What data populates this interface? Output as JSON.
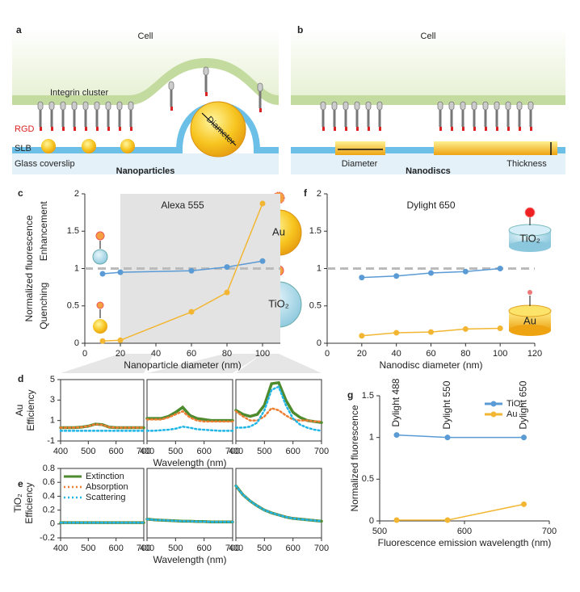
{
  "diagrams": {
    "a": {
      "label": "a",
      "cell": "Cell",
      "integrin": "Integrin cluster",
      "rgd": "RGD",
      "slb": "SLB",
      "glass": "Glass coverslip",
      "title": "Nanoparticles",
      "diameter": "Diameter"
    },
    "b": {
      "label": "b",
      "cell": "Cell",
      "diameter": "Diameter",
      "title": "Nanodiscs",
      "thickness": "Thickness"
    }
  },
  "chart_data": [
    {
      "panel": "c",
      "type": "line",
      "title": "Alexa 555",
      "xlabel": "Nanoparticle diameter (nm)",
      "ylabel": [
        "Normalized fluorescence"
      ],
      "y_annotations": [
        "Enhancement",
        "Quenching"
      ],
      "icons": [
        "Au",
        "TiO₂"
      ],
      "x": [
        10,
        20,
        60,
        80,
        100
      ],
      "xlim": [
        0,
        110
      ],
      "xticks": [
        0,
        20,
        40,
        60,
        80,
        100
      ],
      "ylim": [
        0,
        2
      ],
      "yticks": [
        0,
        0.5,
        1,
        1.5,
        2
      ],
      "shade_x": [
        20,
        110
      ],
      "refline": 1,
      "markers": true,
      "frame": false,
      "series": [
        {
          "color": "#5b9bd5",
          "values": [
            0.93,
            0.95,
            0.97,
            1.02,
            1.1
          ]
        },
        {
          "color": "#f2b632",
          "values": [
            0.03,
            0.04,
            0.42,
            0.68,
            1.87
          ]
        }
      ]
    },
    {
      "panel": "f",
      "type": "line",
      "title": "Dylight 650",
      "xlabel": "Nanodisc diameter (nm)",
      "icons": [
        "TiO₂",
        "Au"
      ],
      "x": [
        20,
        40,
        60,
        80,
        100
      ],
      "xlim": [
        0,
        120
      ],
      "xticks": [
        0,
        20,
        40,
        60,
        80,
        100,
        120
      ],
      "ylim": [
        0,
        2
      ],
      "yticks": [
        0,
        0.5,
        1,
        1.5,
        2
      ],
      "refline": 1,
      "markers": true,
      "frame": false,
      "series": [
        {
          "color": "#5b9bd5",
          "values": [
            0.88,
            0.9,
            0.94,
            0.96,
            1.0
          ]
        },
        {
          "color": "#f2b632",
          "values": [
            0.1,
            0.14,
            0.15,
            0.19,
            0.2
          ]
        }
      ]
    },
    {
      "panel": "d",
      "type": "line",
      "ylabel": [
        "Au",
        "Efficiency"
      ],
      "frame": true,
      "x": [
        400,
        425,
        450,
        475,
        500,
        525,
        550,
        575,
        600,
        625,
        650,
        675,
        700
      ],
      "xlim": [
        400,
        700
      ],
      "xticks": [
        400,
        500,
        600,
        700
      ],
      "ylim": [
        -1,
        5
      ],
      "yticks": [
        -1,
        1,
        3,
        5
      ],
      "series": [
        {
          "color": "#4e8a2e",
          "style": "solid",
          "values": [
            0.3,
            0.3,
            0.3,
            0.35,
            0.45,
            0.65,
            0.6,
            0.35,
            0.3,
            0.3,
            0.3,
            0.3,
            0.3
          ]
        },
        {
          "color": "#ed7d31",
          "style": "dotted",
          "values": [
            0.3,
            0.3,
            0.3,
            0.35,
            0.45,
            0.63,
            0.58,
            0.35,
            0.3,
            0.3,
            0.3,
            0.3,
            0.3
          ]
        },
        {
          "color": "#1fb5e6",
          "style": "dotted",
          "values": [
            0,
            0,
            0,
            0,
            0,
            0,
            0,
            0,
            0,
            0,
            0,
            0,
            0
          ]
        }
      ]
    },
    {
      "type": "line",
      "xlabel": "Wavelength (nm)",
      "frame": true,
      "x": [
        400,
        425,
        450,
        475,
        500,
        525,
        550,
        575,
        600,
        625,
        650,
        675,
        700
      ],
      "xlim": [
        400,
        700
      ],
      "xticks": [
        400,
        500,
        600,
        700
      ],
      "ylim": [
        -1,
        5
      ],
      "series": [
        {
          "color": "#4e8a2e",
          "style": "solid",
          "values": [
            1.2,
            1.2,
            1.2,
            1.4,
            1.8,
            2.3,
            1.5,
            1.2,
            1.1,
            1.0,
            1.0,
            1.0,
            1.0
          ]
        },
        {
          "color": "#ed7d31",
          "style": "dotted",
          "values": [
            1.1,
            1.1,
            1.1,
            1.3,
            1.6,
            1.9,
            1.3,
            1.0,
            0.9,
            0.9,
            0.9,
            0.9,
            0.9
          ]
        },
        {
          "color": "#1fb5e6",
          "style": "dotted",
          "values": [
            0,
            0,
            0.05,
            0.1,
            0.2,
            0.4,
            0.3,
            0.15,
            0.1,
            0.05,
            0,
            0,
            0
          ]
        }
      ]
    },
    {
      "type": "line",
      "frame": true,
      "x": [
        400,
        425,
        450,
        475,
        500,
        525,
        550,
        575,
        600,
        625,
        650,
        675,
        700
      ],
      "xlim": [
        400,
        700
      ],
      "xticks": [
        400,
        500,
        600,
        700
      ],
      "ylim": [
        -1,
        5
      ],
      "series": [
        {
          "color": "#4e8a2e",
          "style": "solid",
          "values": [
            2.0,
            1.6,
            1.4,
            1.6,
            2.5,
            4.6,
            4.7,
            3.0,
            1.8,
            1.3,
            1.0,
            0.9,
            0.8
          ]
        },
        {
          "color": "#ed7d31",
          "style": "dotted",
          "values": [
            1.9,
            1.4,
            1.0,
            1.0,
            1.4,
            2.2,
            2.0,
            1.5,
            1.1,
            1.0,
            1.0,
            0.9,
            0.9
          ]
        },
        {
          "color": "#1fb5e6",
          "style": "dotted",
          "values": [
            0.3,
            0.3,
            0.4,
            0.8,
            2.0,
            4.0,
            4.3,
            2.5,
            1.2,
            0.6,
            0.3,
            0.1,
            0
          ]
        }
      ]
    },
    {
      "panel": "e",
      "type": "line",
      "ylabel": [
        "TiO₂",
        "Efficiency"
      ],
      "frame": true,
      "legend": "upper left",
      "x": [
        400,
        425,
        450,
        475,
        500,
        525,
        550,
        575,
        600,
        625,
        650,
        675,
        700
      ],
      "xlim": [
        400,
        700
      ],
      "xticks": [
        400,
        500,
        600,
        700
      ],
      "ylim": [
        -0.2,
        0.8
      ],
      "yticks": [
        -0.2,
        0,
        0.2,
        0.4,
        0.6,
        0.8
      ],
      "series": [
        {
          "name": "Extinction",
          "color": "#4e8a2e",
          "style": "solid",
          "values": [
            0.02,
            0.02,
            0.02,
            0.02,
            0.02,
            0.02,
            0.02,
            0.02,
            0.02,
            0.02,
            0.02,
            0.02,
            0.02
          ]
        },
        {
          "name": "Absorption",
          "color": "#ed7d31",
          "style": "dotted",
          "values": [
            0.02,
            0.02,
            0.02,
            0.02,
            0.02,
            0.02,
            0.02,
            0.02,
            0.02,
            0.02,
            0.02,
            0.02,
            0.02
          ]
        },
        {
          "name": "Scattering",
          "color": "#1fb5e6",
          "style": "dotted",
          "values": [
            0.02,
            0.02,
            0.02,
            0.02,
            0.02,
            0.02,
            0.02,
            0.02,
            0.02,
            0.02,
            0.02,
            0.02,
            0.02
          ]
        }
      ]
    },
    {
      "type": "line",
      "xlabel": "Wavelength (nm)",
      "frame": true,
      "x": [
        400,
        425,
        450,
        475,
        500,
        525,
        550,
        575,
        600,
        625,
        650,
        675,
        700
      ],
      "xlim": [
        400,
        700
      ],
      "xticks": [
        400,
        500,
        600,
        700
      ],
      "ylim": [
        -0.2,
        0.8
      ],
      "series": [
        {
          "color": "#4e8a2e",
          "style": "solid",
          "values": [
            0.07,
            0.06,
            0.055,
            0.05,
            0.045,
            0.04,
            0.04,
            0.035,
            0.035,
            0.03,
            0.03,
            0.03,
            0.03
          ]
        },
        {
          "color": "#ed7d31",
          "style": "dotted",
          "values": [
            0.07,
            0.06,
            0.055,
            0.05,
            0.045,
            0.04,
            0.04,
            0.035,
            0.035,
            0.03,
            0.03,
            0.03,
            0.03
          ]
        },
        {
          "color": "#1fb5e6",
          "style": "dotted",
          "values": [
            0.07,
            0.06,
            0.055,
            0.05,
            0.045,
            0.04,
            0.04,
            0.035,
            0.035,
            0.03,
            0.03,
            0.03,
            0.03
          ]
        }
      ]
    },
    {
      "type": "line",
      "frame": true,
      "x": [
        400,
        425,
        450,
        475,
        500,
        525,
        550,
        575,
        600,
        625,
        650,
        675,
        700
      ],
      "xlim": [
        400,
        700
      ],
      "xticks": [
        400,
        500,
        600,
        700
      ],
      "ylim": [
        -0.2,
        0.8
      ],
      "series": [
        {
          "color": "#4e8a2e",
          "style": "solid",
          "values": [
            0.55,
            0.42,
            0.33,
            0.26,
            0.2,
            0.16,
            0.13,
            0.1,
            0.08,
            0.07,
            0.06,
            0.05,
            0.04
          ]
        },
        {
          "color": "#ed7d31",
          "style": "dotted",
          "values": [
            0.55,
            0.42,
            0.33,
            0.26,
            0.2,
            0.16,
            0.13,
            0.1,
            0.08,
            0.07,
            0.06,
            0.05,
            0.04
          ]
        },
        {
          "color": "#1fb5e6",
          "style": "dotted",
          "values": [
            0.55,
            0.42,
            0.33,
            0.26,
            0.2,
            0.16,
            0.13,
            0.1,
            0.08,
            0.07,
            0.06,
            0.05,
            0.04
          ]
        }
      ]
    },
    {
      "panel": "g",
      "type": "line",
      "xlabel": "Fluorescence emission wavelength (nm)",
      "ylabel": [
        "Normalized fluorescence"
      ],
      "legend": "upper right",
      "markers": true,
      "frame": false,
      "x": [
        520,
        580,
        670
      ],
      "point_labels": [
        "Dylight 488",
        "Dylight 550",
        "Dylight 650"
      ],
      "xlim": [
        500,
        700
      ],
      "xticks": [
        500,
        600,
        700
      ],
      "ylim": [
        0,
        1.5
      ],
      "yticks": [
        0,
        0.5,
        1,
        1.5
      ],
      "series": [
        {
          "name": "TiO₂",
          "color": "#5b9bd5",
          "values": [
            1.03,
            1.0,
            1.0
          ]
        },
        {
          "name": "Au",
          "color": "#f2b632",
          "values": [
            0.01,
            0.01,
            0.2
          ]
        }
      ]
    }
  ]
}
